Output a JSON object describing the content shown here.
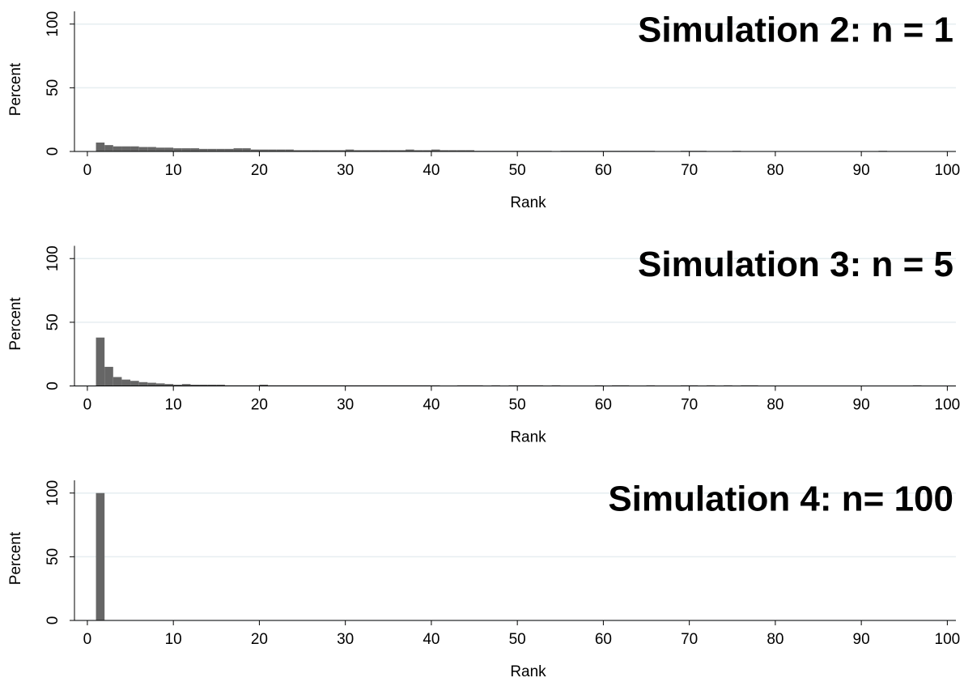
{
  "chart_data": [
    {
      "type": "histogram",
      "title": "Simulation 2: n = 1",
      "xlabel": "Rank",
      "ylabel": "Percent",
      "color": "#666666",
      "grid": true,
      "bins": [
        1,
        2,
        3,
        4,
        5,
        6,
        7,
        8,
        9,
        10,
        11,
        12,
        13,
        14,
        15,
        16,
        17,
        18,
        19,
        20,
        21,
        22,
        23,
        24,
        25,
        26,
        27,
        28,
        29,
        30,
        31,
        32,
        33,
        34,
        35,
        36,
        37,
        38,
        39,
        40,
        41,
        42,
        43,
        44,
        45,
        46,
        47,
        48,
        49,
        50,
        51,
        52,
        53,
        54,
        55,
        56,
        57,
        58,
        59,
        60,
        61,
        62,
        63,
        64,
        65,
        66,
        67,
        68,
        69,
        70,
        71,
        72,
        73,
        74,
        75,
        76,
        77,
        78,
        79,
        80,
        81,
        82,
        83,
        84,
        85,
        86,
        87,
        88,
        89,
        90,
        91,
        92,
        93,
        94,
        95,
        96,
        97,
        98,
        99,
        100,
        101
      ],
      "values": [
        7,
        5,
        4,
        4,
        4,
        3.5,
        3.5,
        3,
        3,
        2.5,
        2.5,
        2.5,
        2,
        2,
        2,
        2,
        2.5,
        2.5,
        1.5,
        1.5,
        1.5,
        1.5,
        1.5,
        1,
        1,
        1,
        1,
        1,
        1,
        1.5,
        1,
        1,
        1,
        1,
        1,
        1,
        1.5,
        1,
        1,
        1.5,
        1,
        1,
        1,
        1,
        0.5,
        0.5,
        0.5,
        0.5,
        0.5,
        0.5,
        0.5,
        0.5,
        0.5,
        0.3,
        0.5,
        0.5,
        0.5,
        0.5,
        0.5,
        0.5,
        0.5,
        0.5,
        0.5,
        0.5,
        0.5,
        0.3,
        0.3,
        0.3,
        0.5,
        0.5,
        0.5,
        0.3,
        0.3,
        0.3,
        0.5,
        0.3,
        0.3,
        0.3,
        0.3,
        0.3,
        0.3,
        0.3,
        0.3,
        0.3,
        0.3,
        0.3,
        0.3,
        0.3,
        0.3,
        0.3,
        0,
        0.5,
        0,
        0.3,
        0.3,
        0.3,
        0.3,
        0.3,
        0.3,
        0.3
      ],
      "xlim": [
        -1.5,
        101
      ],
      "ylim": [
        0,
        110
      ],
      "xticks": [
        0,
        10,
        20,
        30,
        40,
        50,
        60,
        70,
        80,
        90,
        100
      ],
      "yticks": [
        0,
        50,
        100
      ]
    },
    {
      "type": "histogram",
      "title": "Simulation 3: n = 5",
      "xlabel": "Rank",
      "ylabel": "Percent",
      "color": "#666666",
      "grid": true,
      "bins": [
        1,
        2,
        3,
        4,
        5,
        6,
        7,
        8,
        9,
        10,
        11,
        12,
        13,
        14,
        15,
        16,
        17,
        18,
        19,
        20,
        21,
        22,
        23,
        24,
        25,
        26,
        27,
        28,
        29,
        30,
        31,
        32,
        33,
        34,
        35,
        36,
        37,
        38,
        39,
        40,
        41,
        42,
        43,
        44,
        45,
        46,
        47,
        48,
        49,
        50,
        51,
        52,
        53,
        54,
        55,
        56,
        57,
        58,
        59,
        60,
        61,
        62,
        63,
        64,
        65,
        66,
        67,
        68,
        69,
        70,
        71,
        72,
        73,
        74,
        75,
        76,
        77,
        78,
        79,
        80,
        81,
        82,
        83,
        84,
        85,
        86,
        87,
        88,
        89,
        90,
        91,
        92,
        93,
        94,
        95,
        96,
        97,
        98,
        99,
        100,
        101
      ],
      "values": [
        38,
        15,
        7,
        5,
        4,
        3,
        2.5,
        2,
        1.5,
        1,
        1.5,
        1,
        1,
        1,
        1,
        0.5,
        0.5,
        0.5,
        0.5,
        1,
        0.5,
        0.5,
        0.5,
        0.5,
        0.5,
        0.5,
        0.5,
        0.5,
        0.5,
        0.5,
        0.5,
        0.5,
        0.5,
        0.5,
        0.5,
        0.5,
        0.5,
        0.5,
        0.5,
        0.5,
        0,
        0,
        0.5,
        0.5,
        0.5,
        0,
        0.5,
        0,
        0.5,
        0.5,
        0.5,
        0.5,
        0,
        0.5,
        0,
        0,
        0,
        0,
        0.5,
        0,
        0.5,
        0.5,
        0,
        0,
        0.5,
        0,
        0,
        0,
        0.5,
        0.5,
        0,
        0.5,
        0,
        0.5,
        0,
        0.5,
        0.5,
        0,
        0,
        0,
        0,
        0,
        0,
        0,
        0,
        0,
        0,
        0,
        0,
        0,
        0,
        0,
        0,
        0,
        0,
        0.5,
        0,
        0,
        0,
        0
      ],
      "xlim": [
        -1.5,
        101
      ],
      "ylim": [
        0,
        110
      ],
      "xticks": [
        0,
        10,
        20,
        30,
        40,
        50,
        60,
        70,
        80,
        90,
        100
      ],
      "yticks": [
        0,
        50,
        100
      ]
    },
    {
      "type": "histogram",
      "title": "Simulation 4: n= 100",
      "xlabel": "Rank",
      "ylabel": "Percent",
      "color": "#666666",
      "grid": true,
      "bins": [
        1,
        2,
        3,
        4,
        5,
        6,
        7,
        8,
        9,
        10,
        11,
        12,
        13,
        14,
        15,
        16,
        17,
        18,
        19,
        20,
        21,
        22,
        23,
        24,
        25,
        26,
        27,
        28,
        29,
        30,
        31,
        32,
        33,
        34,
        35,
        36,
        37,
        38,
        39,
        40,
        41,
        42,
        43,
        44,
        45,
        46,
        47,
        48,
        49,
        50,
        51,
        52,
        53,
        54,
        55,
        56,
        57,
        58,
        59,
        60,
        61,
        62,
        63,
        64,
        65,
        66,
        67,
        68,
        69,
        70,
        71,
        72,
        73,
        74,
        75,
        76,
        77,
        78,
        79,
        80,
        81,
        82,
        83,
        84,
        85,
        86,
        87,
        88,
        89,
        90,
        91,
        92,
        93,
        94,
        95,
        96,
        97,
        98,
        99,
        100,
        101
      ],
      "values": [
        100,
        0,
        0,
        0,
        0,
        0,
        0,
        0,
        0,
        0,
        0,
        0,
        0,
        0,
        0,
        0,
        0,
        0,
        0,
        0,
        0,
        0,
        0,
        0,
        0,
        0,
        0,
        0,
        0,
        0,
        0,
        0,
        0,
        0,
        0,
        0,
        0,
        0,
        0,
        0,
        0,
        0,
        0,
        0,
        0,
        0,
        0,
        0,
        0,
        0,
        0,
        0,
        0,
        0,
        0,
        0,
        0,
        0,
        0,
        0,
        0,
        0,
        0,
        0,
        0,
        0,
        0,
        0,
        0,
        0,
        0,
        0,
        0,
        0,
        0,
        0,
        0,
        0,
        0,
        0,
        0,
        0,
        0,
        0,
        0,
        0,
        0,
        0,
        0,
        0,
        0,
        0,
        0,
        0,
        0,
        0,
        0,
        0,
        0,
        0
      ],
      "xlim": [
        -1.5,
        101
      ],
      "ylim": [
        0,
        110
      ],
      "xticks": [
        0,
        10,
        20,
        30,
        40,
        50,
        60,
        70,
        80,
        90,
        100
      ],
      "yticks": [
        0,
        50,
        100
      ]
    }
  ]
}
